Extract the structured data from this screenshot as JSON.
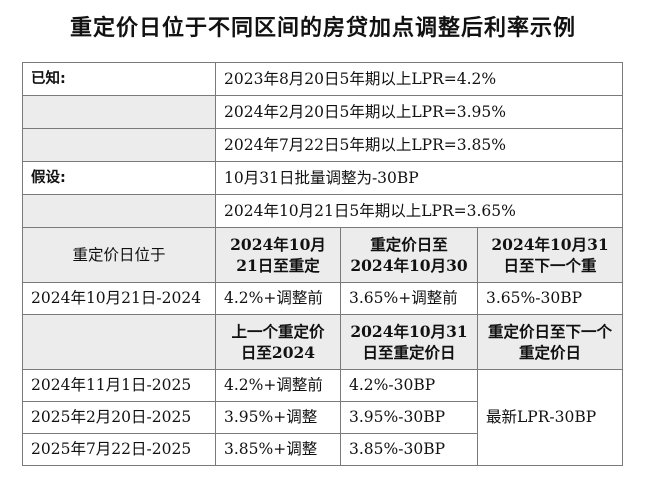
{
  "title": "重定价日位于不同区间的房贷加点调整后利率示例",
  "known_label": "已知:",
  "known": [
    "2023年8月20日5年期以上LPR=4.2%",
    "2024年2月20日5年期以上LPR=3.95%",
    "2024年7月22日5年期以上LPR=3.85%"
  ],
  "assume_label": "假设:",
  "assume": [
    "10月31日批量调整为-30BP",
    "2024年10月21日5年期以上LPR=3.65%"
  ],
  "header1": {
    "c0": "重定价日位于",
    "c1": "2024年10月21日至重定",
    "c2": "重定价日至2024年10月30",
    "c3": "2024年10月31日至下一个重"
  },
  "row1": {
    "c0": "2024年10月21日-2024",
    "c1": "4.2%+调整前",
    "c2": "3.65%+调整前",
    "c3": "3.65%-30BP"
  },
  "header2": {
    "c1": "上一个重定价日至2024",
    "c2": "2024年10月31日至重定价日",
    "c3": "重定价日至下一个重定价日"
  },
  "rows": [
    {
      "c0": "2024年11月1日-2025",
      "c1": "4.2%+调整前",
      "c2": "4.2%-30BP"
    },
    {
      "c0": "2025年2月20日-2025",
      "c1": "3.95%+调整",
      "c2": "3.95%-30BP"
    },
    {
      "c0": "2025年7月22日-2025",
      "c1": "3.85%+调整",
      "c2": "3.85%-30BP"
    }
  ],
  "merged_c3": "最新LPR-30BP",
  "colors": {
    "shade": "#ececec",
    "border": "#7a7a7a"
  }
}
